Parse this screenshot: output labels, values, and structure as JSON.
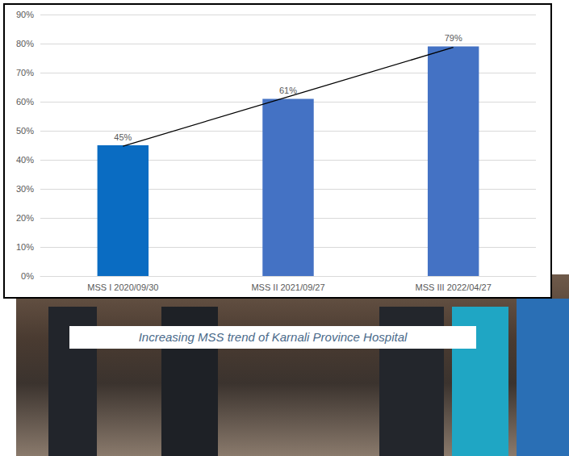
{
  "chart_data": {
    "type": "bar",
    "caption": "Increasing MSS trend of Karnali Province Hospital",
    "categories": [
      "MSS I 2020/09/30",
      "MSS II 2021/09/27",
      "MSS III 2022/04/27"
    ],
    "series": [
      {
        "type": "bar",
        "values": [
          45,
          61,
          79
        ],
        "value_labels": [
          "45%",
          "61%",
          "79%"
        ],
        "colors": [
          "#0a6cc2",
          "#4472c4",
          "#4472c4"
        ],
        "data_labels": true
      },
      {
        "type": "line",
        "values": [
          44.7,
          61.7,
          78.7
        ],
        "color": "#000000"
      }
    ],
    "ylim": [
      0,
      90
    ],
    "yticks": [
      {
        "value": 0,
        "label": "0%"
      },
      {
        "value": 10,
        "label": "10%"
      },
      {
        "value": 20,
        "label": "20%"
      },
      {
        "value": 30,
        "label": "30%"
      },
      {
        "value": 40,
        "label": "40%"
      },
      {
        "value": 50,
        "label": "50%"
      },
      {
        "value": 60,
        "label": "60%"
      },
      {
        "value": 70,
        "label": "70%"
      },
      {
        "value": 80,
        "label": "80%"
      },
      {
        "value": 90,
        "label": "90%"
      }
    ],
    "grid": true
  }
}
